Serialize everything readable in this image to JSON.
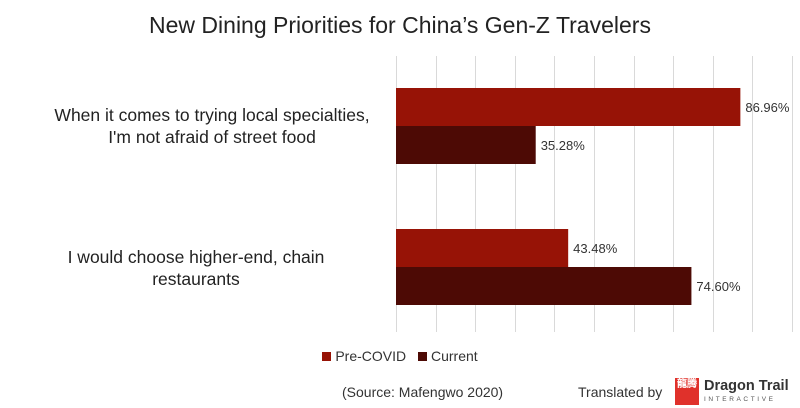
{
  "chart_data": {
    "type": "bar",
    "orientation": "horizontal",
    "title": "New Dining Priorities for China’s Gen-Z Travelers",
    "categories": [
      [
        "When it comes to trying local specialties,",
        "I'm not afraid of street food"
      ],
      [
        "I would choose higher-end, chain",
        "restaurants"
      ]
    ],
    "series": [
      {
        "name": "Pre-COVID",
        "color": "#971306",
        "values": [
          86.96,
          43.48
        ],
        "labels": [
          "86.96%",
          "43.48%"
        ]
      },
      {
        "name": "Current",
        "color": "#4d0a05",
        "values": [
          35.28,
          74.6
        ],
        "labels": [
          "35.28%",
          "74.60%"
        ]
      }
    ],
    "xlim": [
      0,
      100
    ],
    "grid": true,
    "legend_position": "bottom"
  },
  "footer": {
    "source": "(Source: Mafengwo 2020)",
    "credit": "Translated by",
    "logo_name": "Dragon Trail",
    "logo_sub": "INTERACTIVE",
    "logo_mark": "龍腾"
  }
}
